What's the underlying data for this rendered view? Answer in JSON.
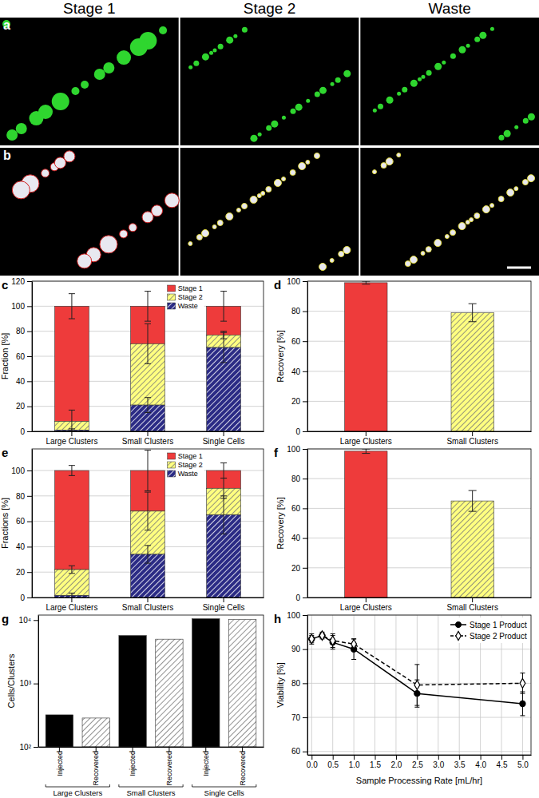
{
  "figure": {
    "columns": [
      "Stage 1",
      "Stage 2",
      "Waste"
    ],
    "panels": [
      "a",
      "b"
    ]
  },
  "chart_data": [
    {
      "type": "bar",
      "annotation": "c",
      "y_label": "Fraction [%]",
      "stacked": true,
      "grid": true,
      "legend": "top-right",
      "categories": [
        "Large Clusters",
        "Small Clusters",
        "Single Cells"
      ],
      "series": [
        {
          "name": "Stage 1",
          "color": "#ee3b3b",
          "values": [
            92,
            30,
            23
          ],
          "errors": [
            10,
            12,
            12
          ]
        },
        {
          "name": "Stage 2",
          "color": "#ffff80",
          "values": [
            7,
            49,
            10
          ],
          "errors": [
            9,
            16,
            3
          ]
        },
        {
          "name": "Waste",
          "color": "#2b2b85",
          "values": [
            1,
            21,
            67
          ],
          "errors": [
            1,
            6,
            12
          ]
        }
      ],
      "ylim": [
        0,
        120
      ],
      "yticks": [
        0,
        20,
        40,
        60,
        80,
        100,
        120
      ]
    },
    {
      "type": "bar",
      "annotation": "d",
      "y_label": "Recovery [%]",
      "grid": true,
      "categories": [
        "Large Clusters",
        "Small Clusters"
      ],
      "values": [
        99,
        79
      ],
      "errors": [
        1,
        6
      ],
      "colors": [
        "#ee3b3b",
        "#ffff80"
      ],
      "ylim": [
        0,
        100
      ],
      "yticks": [
        0,
        20,
        40,
        60,
        80,
        100
      ]
    },
    {
      "type": "bar",
      "annotation": "e",
      "y_label": "Fractions [%]",
      "stacked": true,
      "grid": true,
      "legend": "top-right",
      "categories": [
        "Large Clusters",
        "Small Clusters",
        "Single Cells"
      ],
      "series": [
        {
          "name": "Stage 1",
          "color": "#ee3b3b",
          "values": [
            78,
            32,
            14
          ],
          "errors": [
            4,
            16,
            6
          ]
        },
        {
          "name": "Stage 2",
          "color": "#ffff80",
          "values": [
            20.5,
            34,
            21
          ],
          "errors": [
            3,
            15,
            8
          ]
        },
        {
          "name": "Waste",
          "color": "#2b2b85",
          "values": [
            1.5,
            34,
            65
          ],
          "errors": [
            2,
            7,
            15
          ]
        }
      ],
      "ylim": [
        0,
        117
      ],
      "yticks": [
        0,
        20,
        40,
        60,
        80,
        100
      ]
    },
    {
      "type": "bar",
      "annotation": "f",
      "y_label": "Recovery [%]",
      "grid": true,
      "categories": [
        "Large Clusters",
        "Small Clusters"
      ],
      "values": [
        98.5,
        65
      ],
      "errors": [
        1.5,
        7
      ],
      "colors": [
        "#ee3b3b",
        "#ffff80"
      ],
      "ylim": [
        0,
        100
      ],
      "yticks": [
        0,
        20,
        40,
        60,
        80,
        100
      ]
    },
    {
      "type": "bar",
      "annotation": "g",
      "y_label": "Cells/Clusters",
      "log": "y",
      "categories": [
        "Injected",
        "Recovered",
        "Injected",
        "Recovered",
        "Injected",
        "Recovered"
      ],
      "category_groups": [
        "Large Clusters",
        "Small Clusters",
        "Single Cells"
      ],
      "values": [
        320,
        285,
        5700,
        5000,
        10500,
        10200
      ],
      "colors": [
        "#000000",
        "#ffffff",
        "#000000",
        "#ffffff",
        "#000000",
        "#ffffff"
      ],
      "ylim": [
        100,
        12000
      ],
      "yticks": [
        {
          "value": 100,
          "label": "10²"
        },
        {
          "value": 1000,
          "label": "10³"
        },
        {
          "value": 10000,
          "label": "10⁴"
        }
      ]
    },
    {
      "type": "line",
      "annotation": "h",
      "x_label": "Sample Processing Rate [mL/hr]",
      "y_label": "Viability [%]",
      "grid": true,
      "legend": "top-right",
      "x": [
        0,
        0.25,
        0.5,
        1,
        2.5,
        5
      ],
      "series": [
        {
          "name": "Stage 1 Product",
          "color": "#000000",
          "marker": "circle",
          "line_style": "solid",
          "values": [
            93,
            94,
            92,
            90,
            77,
            74
          ],
          "errors": [
            1.5,
            1,
            2,
            3,
            4,
            3.5
          ]
        },
        {
          "name": "Stage 2 Product",
          "color": "#000000",
          "marker": "diamond",
          "line_style": "dashed",
          "values": [
            93,
            94,
            92.5,
            91.5,
            79.5,
            80
          ],
          "errors": [
            1,
            0.5,
            2,
            1.5,
            6,
            3
          ]
        }
      ],
      "xlim": [
        -0.1,
        5.2
      ],
      "xticks": [
        {
          "value": 0,
          "label": "0.0"
        },
        0.5,
        {
          "value": 1,
          "label": "1.0"
        },
        1.5,
        {
          "value": 2,
          "label": "2.0"
        },
        2.5,
        {
          "value": 3,
          "label": "3.0"
        },
        3.5,
        {
          "value": 4,
          "label": "4.0"
        },
        4.5,
        {
          "value": 5,
          "label": "5.0"
        }
      ],
      "ylim": [
        59,
        100
      ],
      "yticks": [
        60,
        70,
        80,
        90,
        100
      ]
    }
  ]
}
